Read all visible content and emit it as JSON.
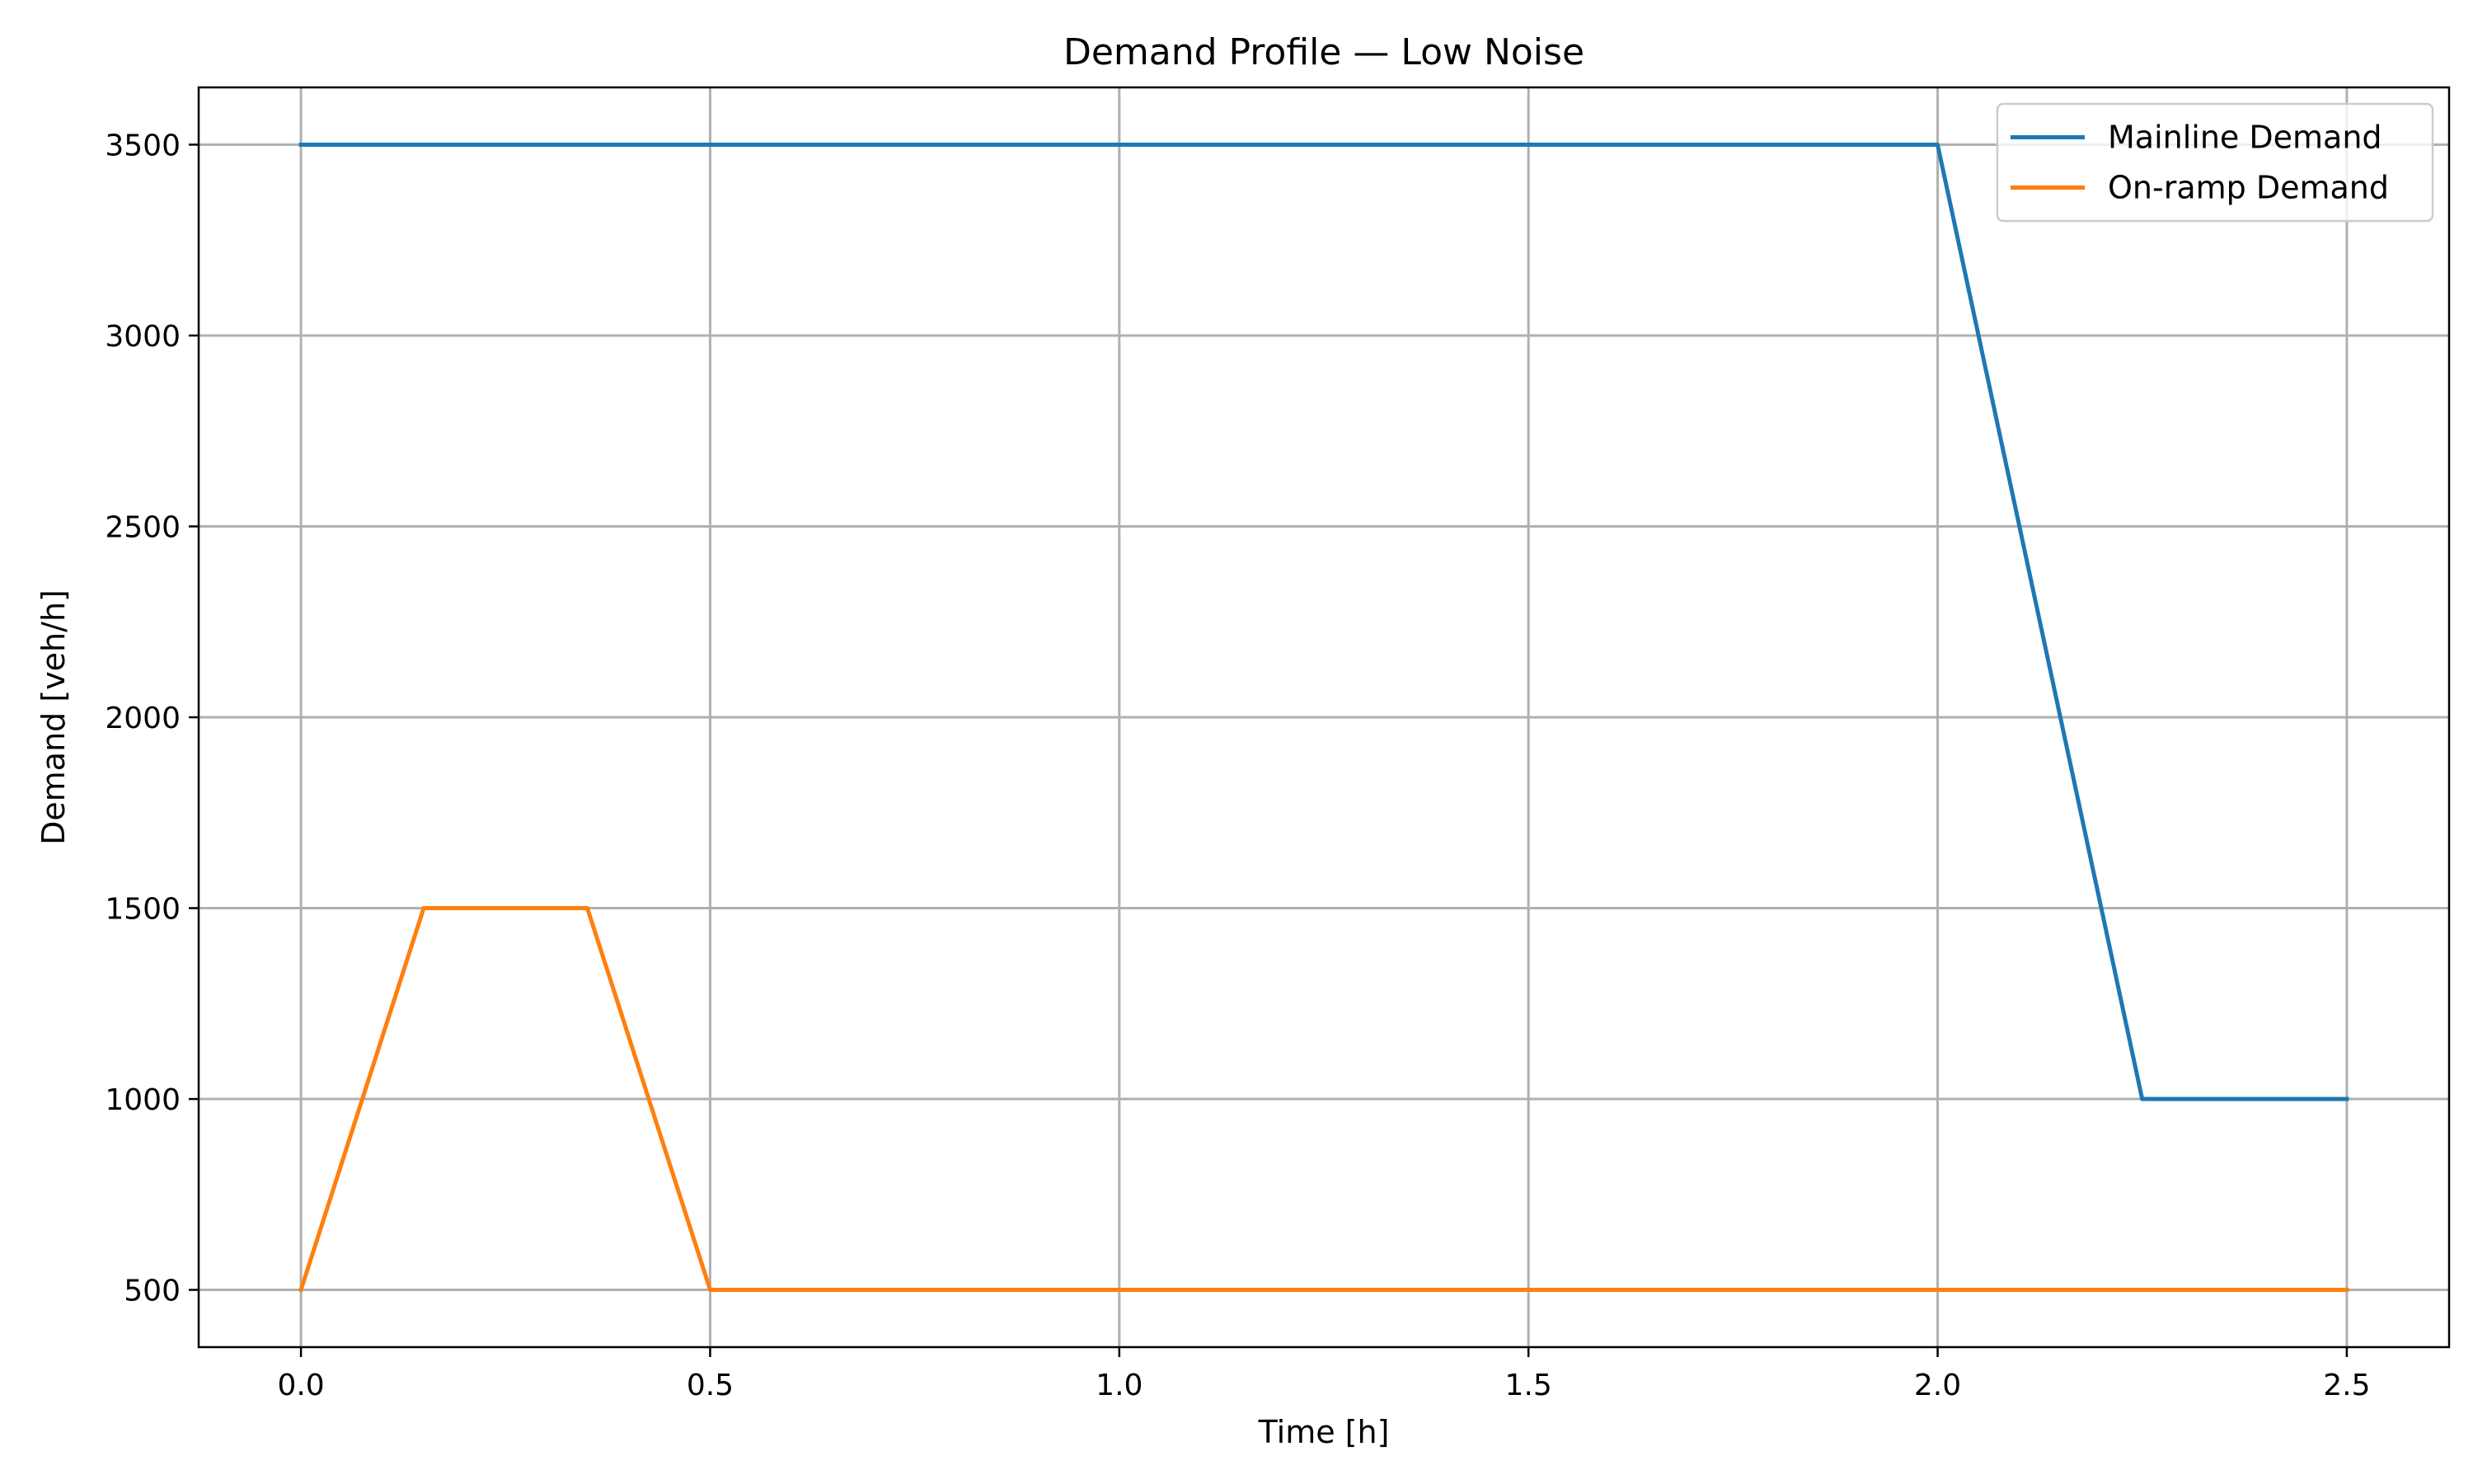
{
  "chart_data": {
    "type": "line",
    "title": "Demand Profile — Low Noise",
    "xlabel": "Time [h]",
    "ylabel": "Demand [veh/h]",
    "xlim": [
      -0.125,
      2.625
    ],
    "ylim": [
      350,
      3650
    ],
    "x_ticks": [
      0.0,
      0.5,
      1.0,
      1.5,
      2.0,
      2.5
    ],
    "x_tick_labels": [
      "0.0",
      "0.5",
      "1.0",
      "1.5",
      "2.0",
      "2.5"
    ],
    "y_ticks": [
      500,
      1000,
      1500,
      2000,
      2500,
      3000,
      3500
    ],
    "y_tick_labels": [
      "500",
      "1000",
      "1500",
      "2000",
      "2500",
      "3000",
      "3500"
    ],
    "grid": true,
    "legend_position": "top-right",
    "series": [
      {
        "name": "Mainline Demand",
        "color": "#1f77b4",
        "x": [
          0.0,
          2.0,
          2.25,
          2.5
        ],
        "y": [
          3500,
          3500,
          1000,
          1000
        ]
      },
      {
        "name": "On-ramp Demand",
        "color": "#ff7f0e",
        "x": [
          0.0,
          0.15,
          0.35,
          0.5,
          2.5
        ],
        "y": [
          500,
          1500,
          1500,
          500,
          500
        ]
      }
    ]
  }
}
